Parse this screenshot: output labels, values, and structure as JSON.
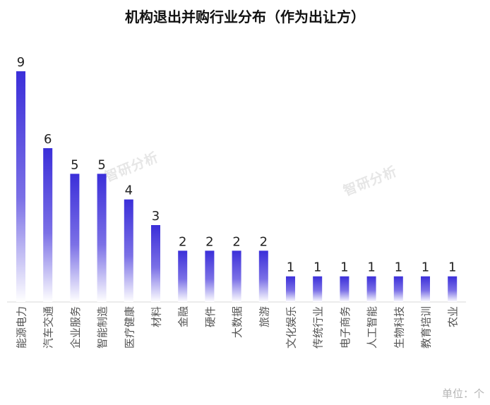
{
  "watermark": "智研分析",
  "unit_label": "单位：个",
  "chart_data": {
    "type": "bar",
    "title": "机构退出并购行业分布（作为出让方）",
    "xlabel": "",
    "ylabel": "",
    "ylim": [
      0,
      9
    ],
    "grid": false,
    "legend": "none",
    "bar_color_top": "#3b2fd9",
    "bar_color_bottom": "#ffffff",
    "categories": [
      "能源电力",
      "汽车交通",
      "企业服务",
      "智能制造",
      "医疗健康",
      "材料",
      "金融",
      "硬件",
      "大数据",
      "旅游",
      "文化娱乐",
      "传统行业",
      "电子商务",
      "人工智能",
      "生物科技",
      "教育培训",
      "农业"
    ],
    "values": [
      9,
      6,
      5,
      5,
      4,
      3,
      2,
      2,
      2,
      2,
      1,
      1,
      1,
      1,
      1,
      1,
      1
    ]
  }
}
